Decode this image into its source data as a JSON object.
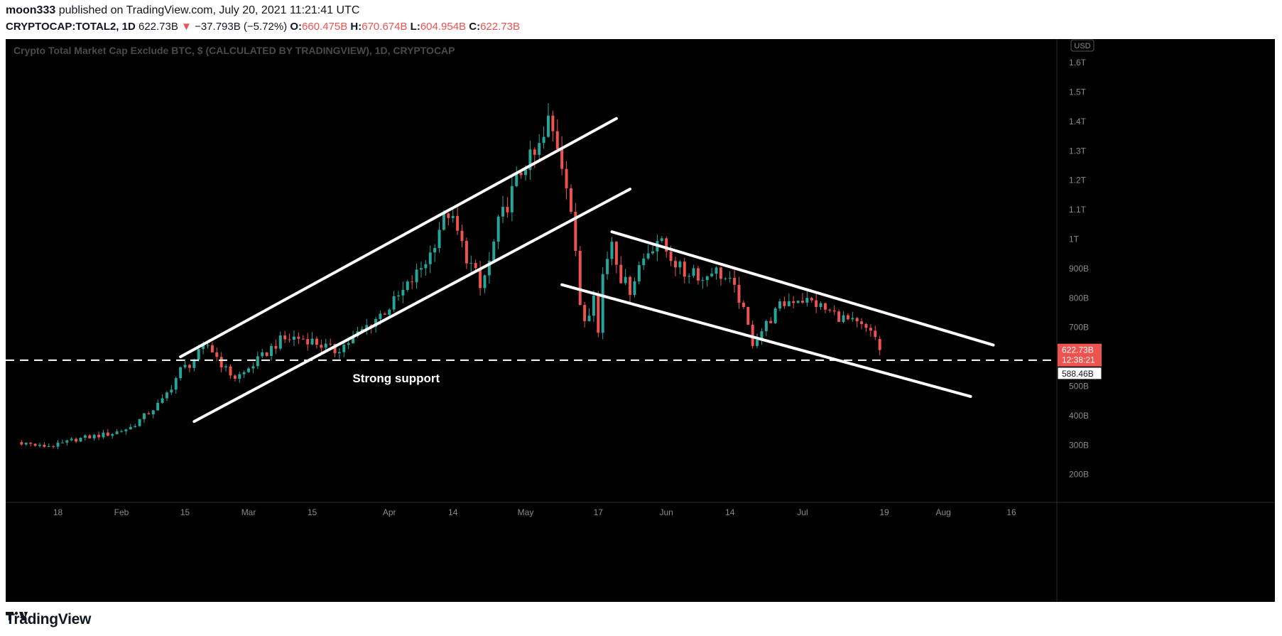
{
  "header": {
    "publisher": "moon333",
    "published_text": "published on TradingView.com, July 20, 2021 11:21:41 UTC",
    "symbol": "CRYPTOCAP:TOTAL2, 1D",
    "last_price": "622.73B",
    "change_arrow": "▼",
    "change": "−37.793B (−5.72%)",
    "open_label": "O:",
    "open": "660.475B",
    "high_label": "H:",
    "high": "670.674B",
    "low_label": "L:",
    "low": "604.954B",
    "close_label": "C:",
    "close": "622.73B"
  },
  "chart_data": {
    "type": "candlestick",
    "title": "Crypto Total Market Cap Exclude BTC, $ (CALCULATED BY TRADINGVIEW), 1D, CRYPTOCAP",
    "currency_label": "USD",
    "y_axis": {
      "ticks": [
        "200B",
        "300B",
        "400B",
        "500B",
        "600B",
        "700B",
        "800B",
        "900B",
        "1T",
        "1.1T",
        "1.2T",
        "1.3T",
        "1.4T",
        "1.5T",
        "1.6T"
      ],
      "tick_values": [
        200,
        300,
        400,
        500,
        600,
        700,
        800,
        900,
        1000,
        1100,
        1200,
        1300,
        1400,
        1500,
        1600
      ],
      "ylim": [
        105,
        1680
      ],
      "unit": "billions USD"
    },
    "x_axis": {
      "ticks": [
        "18",
        "Feb",
        "15",
        "Mar",
        "15",
        "Apr",
        "14",
        "May",
        "17",
        "Jun",
        "14",
        "Jul",
        "19",
        "Aug",
        "16"
      ],
      "tick_days": [
        18,
        32,
        46,
        60,
        74,
        91,
        105,
        121,
        137,
        152,
        166,
        182,
        200,
        213,
        228
      ],
      "xlim": [
        6.5,
        238
      ]
    },
    "day_start": 10,
    "last_price_badge": "622.73B",
    "countdown": "12:38:21",
    "support_badge": "588.46B",
    "support_level": 588.46,
    "support_label": "Strong support",
    "lines": [
      {
        "name": "ascending-channel-upper",
        "p1": [
          45,
          600
        ],
        "p2": [
          141,
          1410
        ]
      },
      {
        "name": "ascending-channel-lower",
        "p1": [
          48,
          380
        ],
        "p2": [
          144,
          1170
        ]
      },
      {
        "name": "descending-channel-upper",
        "p1": [
          140,
          1025
        ],
        "p2": [
          224,
          640
        ]
      },
      {
        "name": "descending-channel-lower",
        "p1": [
          129,
          845
        ],
        "p2": [
          219,
          465
        ]
      }
    ],
    "anchors": [
      [
        10,
        310
      ],
      [
        14,
        295
      ],
      [
        18,
        300
      ],
      [
        22,
        320
      ],
      [
        26,
        330
      ],
      [
        30,
        340
      ],
      [
        34,
        360
      ],
      [
        38,
        410
      ],
      [
        41,
        450
      ],
      [
        43,
        500
      ],
      [
        45,
        555
      ],
      [
        47,
        575
      ],
      [
        49,
        610
      ],
      [
        51,
        640
      ],
      [
        53,
        600
      ],
      [
        55,
        555
      ],
      [
        57,
        530
      ],
      [
        59,
        545
      ],
      [
        61,
        575
      ],
      [
        63,
        600
      ],
      [
        65,
        630
      ],
      [
        67,
        655
      ],
      [
        70,
        665
      ],
      [
        73,
        660
      ],
      [
        76,
        640
      ],
      [
        79,
        620
      ],
      [
        82,
        650
      ],
      [
        85,
        690
      ],
      [
        88,
        730
      ],
      [
        91,
        770
      ],
      [
        94,
        820
      ],
      [
        97,
        880
      ],
      [
        100,
        950
      ],
      [
        102,
        1040
      ],
      [
        104,
        1090
      ],
      [
        106,
        1020
      ],
      [
        108,
        940
      ],
      [
        110,
        880
      ],
      [
        111,
        830
      ],
      [
        113,
        920
      ],
      [
        115,
        1050
      ],
      [
        117,
        1120
      ],
      [
        119,
        1200
      ],
      [
        121,
        1260
      ],
      [
        123,
        1280
      ],
      [
        125,
        1340
      ],
      [
        126,
        1400
      ],
      [
        128,
        1320
      ],
      [
        130,
        1200
      ],
      [
        131,
        1100
      ],
      [
        132,
        940
      ],
      [
        133,
        780
      ],
      [
        134,
        730
      ],
      [
        135,
        760
      ],
      [
        136,
        830
      ],
      [
        137,
        680
      ],
      [
        138,
        880
      ],
      [
        140,
        1000
      ],
      [
        142,
        870
      ],
      [
        144,
        830
      ],
      [
        146,
        910
      ],
      [
        148,
        960
      ],
      [
        150,
        1000
      ],
      [
        152,
        960
      ],
      [
        154,
        920
      ],
      [
        156,
        880
      ],
      [
        158,
        900
      ],
      [
        160,
        860
      ],
      [
        162,
        900
      ],
      [
        164,
        880
      ],
      [
        166,
        850
      ],
      [
        168,
        800
      ],
      [
        170,
        700
      ],
      [
        171,
        650
      ],
      [
        173,
        690
      ],
      [
        175,
        730
      ],
      [
        177,
        770
      ],
      [
        179,
        790
      ],
      [
        181,
        800
      ],
      [
        183,
        790
      ],
      [
        185,
        780
      ],
      [
        187,
        760
      ],
      [
        189,
        745
      ],
      [
        191,
        730
      ],
      [
        193,
        715
      ],
      [
        195,
        700
      ],
      [
        196,
        690
      ],
      [
        198,
        665
      ],
      [
        199,
        622.73
      ]
    ]
  }
}
